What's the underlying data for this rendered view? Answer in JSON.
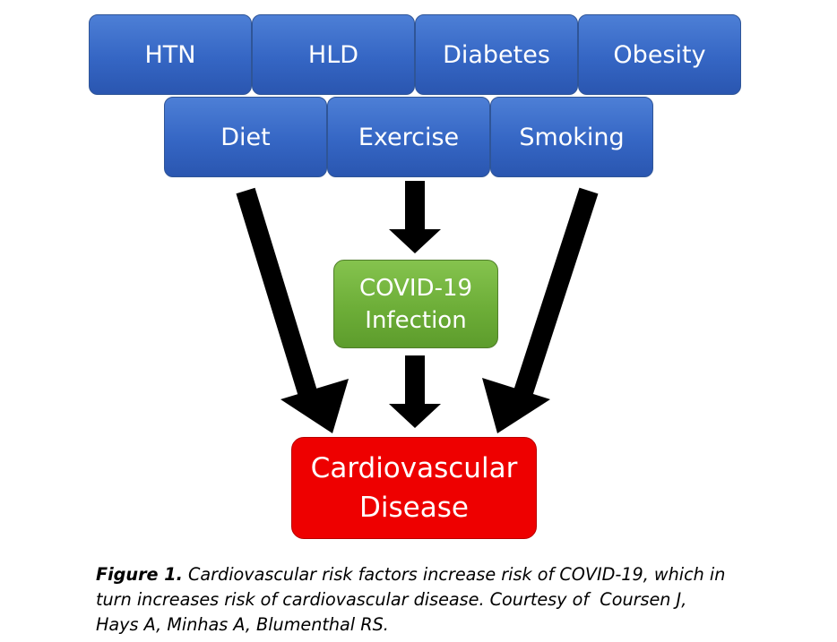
{
  "risk_factors_row1": [
    "HTN",
    "HLD",
    "Diabetes",
    "Obesity"
  ],
  "risk_factors_row2": [
    "Diet",
    "Exercise",
    "Smoking"
  ],
  "covid_box": {
    "line1": "COVID-19",
    "line2": "Infection"
  },
  "outcome_box": {
    "line1": "Cardiovascular",
    "line2": "Disease"
  },
  "caption": {
    "label": "Figure 1.",
    "line1": " Cardiovascular risk factors increase risk of COVID-19, which in",
    "line2": "turn increases risk of cardiovascular disease. Courtesy of  Coursen J,",
    "line3": "Hays A, Minhas A, Blumenthal RS."
  },
  "colors": {
    "risk_factor_fill": "#3566c4",
    "covid_fill": "#6dae38",
    "outcome_fill": "#ee0000",
    "arrow": "#000000"
  }
}
